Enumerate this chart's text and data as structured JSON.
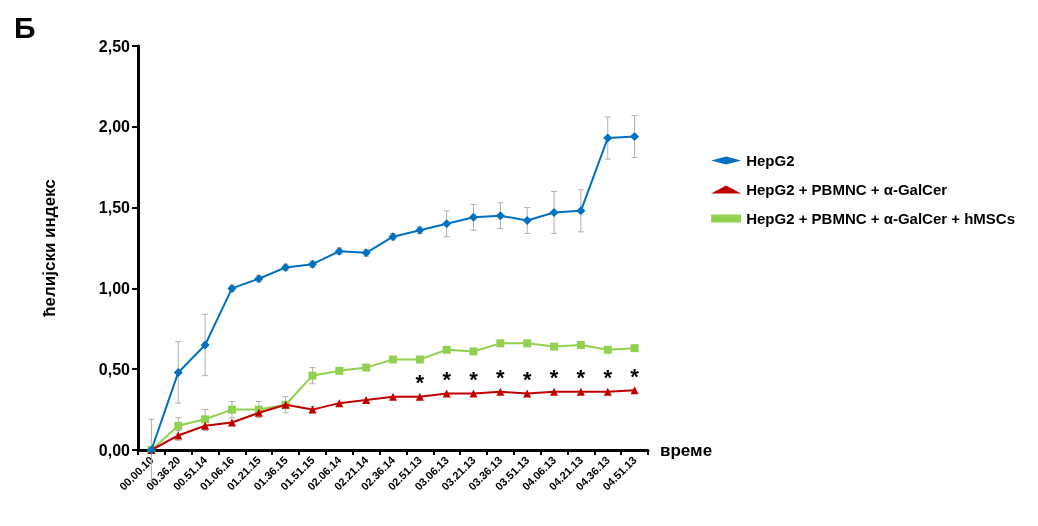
{
  "chart_data": {
    "type": "line",
    "ylabel": "ћелијски индекс",
    "xlabel": "време",
    "categories": [
      "00.00.10",
      "00.36.20",
      "00.51.14",
      "01.06.16",
      "01.21.15",
      "01.36.15",
      "01.51.15",
      "02.06.14",
      "02.21.14",
      "02.36.14",
      "02.51.13",
      "03.06.13",
      "03.21.13",
      "03.36.13",
      "03.51.13",
      "04.06.13",
      "04.21.13",
      "04.36.13",
      "04.51.13"
    ],
    "series": [
      {
        "name": "HepG2",
        "color": "#0070c0",
        "marker": "diamond",
        "values": [
          0,
          0.48,
          0.65,
          1.0,
          1.06,
          1.13,
          1.15,
          1.23,
          1.22,
          1.32,
          1.36,
          1.4,
          1.44,
          1.45,
          1.42,
          1.47,
          1.48,
          1.93,
          1.94
        ],
        "errors": [
          0.19,
          0.19,
          0.19,
          0.02,
          0.02,
          0.02,
          0.02,
          0.02,
          0.02,
          0.02,
          0.02,
          0.08,
          0.08,
          0.08,
          0.08,
          0.13,
          0.13,
          0.13,
          0.13
        ]
      },
      {
        "name": "HepG2 + PBMNC + α-GalCer",
        "color": "#c00000",
        "marker": "triangle",
        "values": [
          0,
          0.09,
          0.15,
          0.17,
          0.23,
          0.28,
          0.25,
          0.29,
          0.31,
          0.33,
          0.33,
          0.35,
          0.35,
          0.36,
          0.35,
          0.36,
          0.36,
          0.36,
          0.37
        ],
        "errors": [
          null,
          0.03,
          0.03,
          null,
          null,
          null,
          0.02,
          null,
          null,
          null,
          null,
          null,
          null,
          null,
          null,
          null,
          null,
          null,
          null
        ]
      },
      {
        "name": "HepG2 + PBMNC + α-GalCer + hMSCs",
        "color": "#92d050",
        "marker": "square",
        "values": [
          0,
          0.15,
          0.19,
          0.25,
          0.25,
          0.28,
          0.46,
          0.49,
          0.51,
          0.56,
          0.56,
          0.62,
          0.61,
          0.66,
          0.66,
          0.64,
          0.65,
          0.62,
          0.63
        ],
        "errors": [
          null,
          0.05,
          0.06,
          0.05,
          0.05,
          0.05,
          0.05,
          null,
          null,
          null,
          null,
          null,
          null,
          null,
          null,
          null,
          null,
          null,
          null
        ]
      }
    ],
    "ylim": [
      0,
      2.5
    ],
    "yticks": [
      {
        "value": 0,
        "label": "0,00"
      },
      {
        "value": 0.5,
        "label": "0,50"
      },
      {
        "value": 1,
        "label": "1,00"
      },
      {
        "value": 1.5,
        "label": "1,50"
      },
      {
        "value": 2,
        "label": "2,00"
      },
      {
        "value": 2.5,
        "label": "2,50"
      }
    ],
    "grid": false,
    "legend": "right",
    "line_style": "solid",
    "annotations": [
      "Б",
      {
        "text": "*",
        "x": "02.51.13",
        "y": 0.33
      },
      {
        "text": "*",
        "x": "03.06.13",
        "y": 0.35
      },
      {
        "text": "*",
        "x": "03.21.13",
        "y": 0.35
      },
      {
        "text": "*",
        "x": "03.36.13",
        "y": 0.36
      },
      {
        "text": "*",
        "x": "03.51.13",
        "y": 0.35
      },
      {
        "text": "*",
        "x": "04.06.13",
        "y": 0.36
      },
      {
        "text": "*",
        "x": "04.21.13",
        "y": 0.36
      },
      {
        "text": "*",
        "x": "04.36.13",
        "y": 0.36
      },
      {
        "text": "*",
        "x": "04.51.13",
        "y": 0.37
      }
    ]
  }
}
